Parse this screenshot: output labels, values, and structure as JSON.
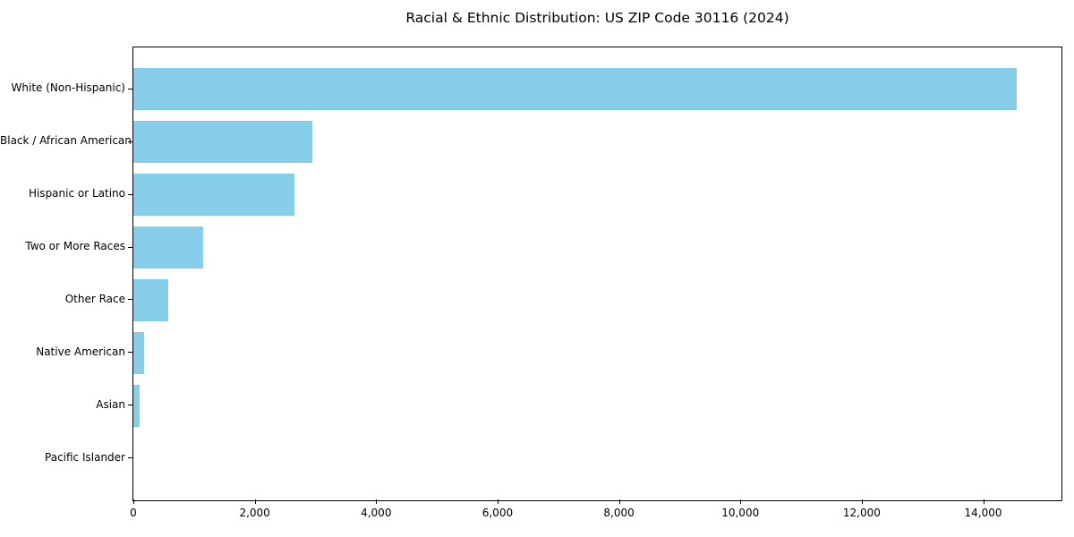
{
  "chart_data": {
    "type": "bar",
    "orientation": "horizontal",
    "title": "Racial & Ethnic Distribution: US ZIP Code 30116 (2024)",
    "xlabel": "",
    "ylabel": "",
    "categories": [
      "White (Non-Hispanic)",
      "Black / African American",
      "Hispanic or Latino",
      "Two or More Races",
      "Other Race",
      "Native American",
      "Asian",
      "Pacific Islander"
    ],
    "values": [
      14560,
      2950,
      2650,
      1145,
      575,
      175,
      110,
      0
    ],
    "xlim": [
      0,
      15290
    ],
    "x_ticks": [
      0,
      2000,
      4000,
      6000,
      8000,
      10000,
      12000,
      14000
    ],
    "x_tick_labels": [
      "0",
      "2,000",
      "4,000",
      "6,000",
      "8,000",
      "10,000",
      "12,000",
      "14,000"
    ],
    "bar_color": "#87CEEB",
    "grid": false,
    "legend_position": "none"
  },
  "colors": {
    "bar": "#87CEEB",
    "axis": "#000000",
    "background": "#ffffff",
    "text": "#000000"
  }
}
